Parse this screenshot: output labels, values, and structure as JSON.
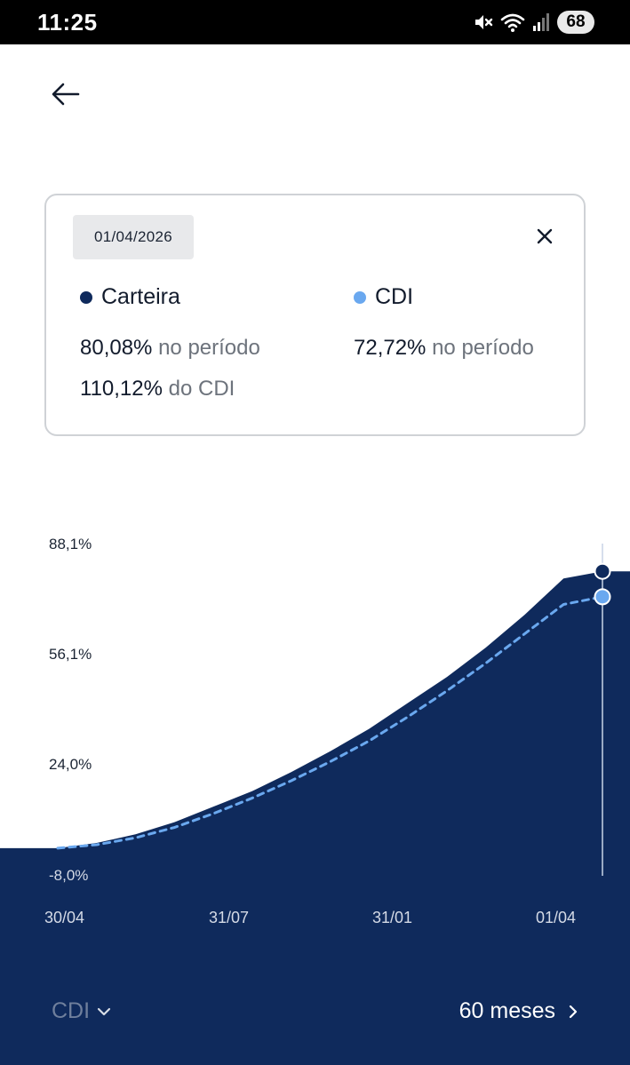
{
  "status_bar": {
    "time": "11:25",
    "battery": "68",
    "icons": [
      "mute-icon",
      "wifi-icon",
      "signal-icon"
    ]
  },
  "card": {
    "date": "01/04/2026",
    "series": [
      {
        "name": "Carteira",
        "color": "#0f2a5c"
      },
      {
        "name": "CDI",
        "color": "#6aa8ef"
      }
    ],
    "carteira_value": "80,08%",
    "carteira_value_suffix": " no período",
    "carteira_cdi_value": "110,12%",
    "carteira_cdi_suffix": " do CDI",
    "cdi_value": "72,72%",
    "cdi_value_suffix": " no período"
  },
  "chart_data": {
    "type": "area",
    "y_ticks": [
      "88,1%",
      "56,1%",
      "24,0%",
      "-8,0%"
    ],
    "x_ticks": [
      "30/04",
      "31/07",
      "31/01",
      "01/04"
    ],
    "ylim": [
      -8.0,
      88.1
    ],
    "series": [
      {
        "name": "Carteira",
        "values": [
          0.0,
          1.5,
          4.0,
          7.5,
          12.0,
          16.5,
          22.0,
          28.0,
          34.5,
          42.0,
          49.5,
          58.0,
          67.5,
          78.0,
          80.08
        ]
      },
      {
        "name": "CDI",
        "values": [
          0.0,
          1.0,
          3.0,
          6.0,
          10.0,
          14.5,
          19.5,
          25.0,
          31.0,
          38.0,
          45.5,
          53.5,
          62.0,
          70.5,
          72.72
        ]
      }
    ],
    "colors": {
      "fill": "#0f2a5c",
      "cdi_line": "#6aa8ef",
      "marker_line": "#c9d4e6"
    }
  },
  "controls": {
    "benchmark_label": "CDI",
    "period_label": "60 meses"
  }
}
